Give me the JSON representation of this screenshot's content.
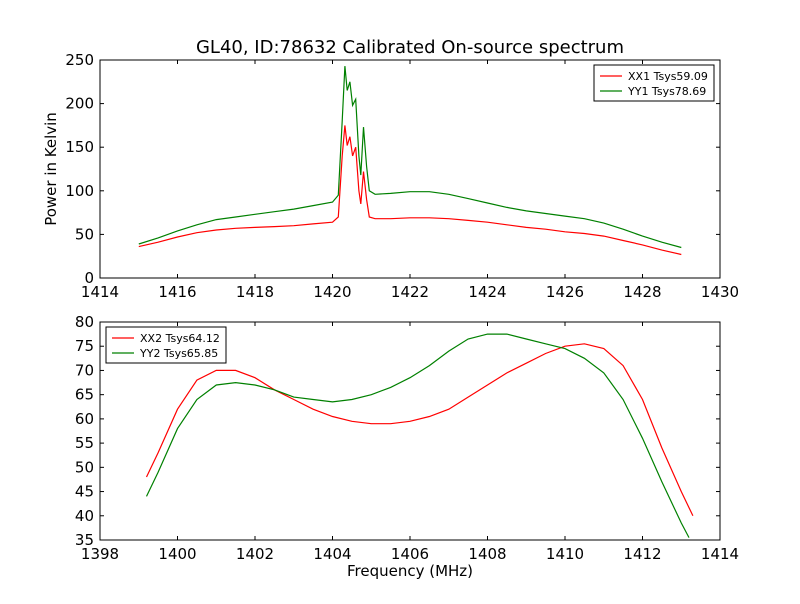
{
  "title": "GL40, ID:78632 Calibrated On-source spectrum",
  "chart_data": [
    {
      "type": "line",
      "ylabel": "Power in Kelvin",
      "xlabel": "",
      "xlim": [
        1414,
        1430
      ],
      "ylim": [
        0,
        250
      ],
      "xticks": [
        "1414",
        "1416",
        "1418",
        "1420",
        "1422",
        "1424",
        "1426",
        "1428",
        "1430"
      ],
      "yticks": [
        "0",
        "50",
        "100",
        "150",
        "200",
        "250"
      ],
      "grid": false,
      "legend_position": "top-right",
      "series": [
        {
          "name": "XX1 Tsys59.09",
          "color": "#ff0000",
          "points": [
            [
              1415.0,
              36
            ],
            [
              1415.5,
              41
            ],
            [
              1416.0,
              47
            ],
            [
              1416.5,
              52
            ],
            [
              1417.0,
              55
            ],
            [
              1417.5,
              57
            ],
            [
              1418.0,
              58
            ],
            [
              1418.5,
              59
            ],
            [
              1419.0,
              60
            ],
            [
              1419.5,
              62
            ],
            [
              1420.0,
              64
            ],
            [
              1420.15,
              70
            ],
            [
              1420.25,
              140
            ],
            [
              1420.32,
              175
            ],
            [
              1420.38,
              152
            ],
            [
              1420.45,
              162
            ],
            [
              1420.52,
              140
            ],
            [
              1420.6,
              150
            ],
            [
              1420.68,
              100
            ],
            [
              1420.73,
              85
            ],
            [
              1420.8,
              122
            ],
            [
              1420.88,
              90
            ],
            [
              1420.95,
              70
            ],
            [
              1421.1,
              68
            ],
            [
              1421.5,
              68
            ],
            [
              1422.0,
              69
            ],
            [
              1422.5,
              69
            ],
            [
              1423.0,
              68
            ],
            [
              1423.5,
              66
            ],
            [
              1424.0,
              64
            ],
            [
              1424.5,
              61
            ],
            [
              1425.0,
              58
            ],
            [
              1425.5,
              56
            ],
            [
              1426.0,
              53
            ],
            [
              1426.5,
              51
            ],
            [
              1427.0,
              48
            ],
            [
              1427.5,
              43
            ],
            [
              1428.0,
              38
            ],
            [
              1428.5,
              32
            ],
            [
              1429.0,
              27
            ]
          ]
        },
        {
          "name": "YY1 Tsys78.69",
          "color": "#008000",
          "points": [
            [
              1415.0,
              39
            ],
            [
              1415.5,
              46
            ],
            [
              1416.0,
              54
            ],
            [
              1416.5,
              61
            ],
            [
              1417.0,
              67
            ],
            [
              1417.5,
              70
            ],
            [
              1418.0,
              73
            ],
            [
              1418.5,
              76
            ],
            [
              1419.0,
              79
            ],
            [
              1419.5,
              83
            ],
            [
              1420.0,
              87
            ],
            [
              1420.15,
              95
            ],
            [
              1420.25,
              180
            ],
            [
              1420.32,
              243
            ],
            [
              1420.38,
              215
            ],
            [
              1420.45,
              225
            ],
            [
              1420.52,
              198
            ],
            [
              1420.6,
              205
            ],
            [
              1420.68,
              140
            ],
            [
              1420.73,
              118
            ],
            [
              1420.8,
              173
            ],
            [
              1420.88,
              128
            ],
            [
              1420.95,
              100
            ],
            [
              1421.1,
              96
            ],
            [
              1421.5,
              97
            ],
            [
              1422.0,
              99
            ],
            [
              1422.5,
              99
            ],
            [
              1423.0,
              96
            ],
            [
              1423.5,
              91
            ],
            [
              1424.0,
              86
            ],
            [
              1424.5,
              81
            ],
            [
              1425.0,
              77
            ],
            [
              1425.5,
              74
            ],
            [
              1426.0,
              71
            ],
            [
              1426.5,
              68
            ],
            [
              1427.0,
              63
            ],
            [
              1427.5,
              56
            ],
            [
              1428.0,
              48
            ],
            [
              1428.5,
              41
            ],
            [
              1429.0,
              35
            ]
          ]
        }
      ]
    },
    {
      "type": "line",
      "xlabel": "Frequency (MHz)",
      "ylabel": "",
      "xlim": [
        1398,
        1414
      ],
      "ylim": [
        35,
        80
      ],
      "xticks": [
        "1398",
        "1400",
        "1402",
        "1404",
        "1406",
        "1408",
        "1410",
        "1412",
        "1414"
      ],
      "yticks": [
        "35",
        "40",
        "45",
        "50",
        "55",
        "60",
        "65",
        "70",
        "75",
        "80"
      ],
      "grid": false,
      "legend_position": "top-left",
      "series": [
        {
          "name": "XX2 Tsys64.12",
          "color": "#ff0000",
          "points": [
            [
              1399.2,
              48
            ],
            [
              1399.5,
              53
            ],
            [
              1400.0,
              62
            ],
            [
              1400.5,
              68
            ],
            [
              1401.0,
              70
            ],
            [
              1401.5,
              70
            ],
            [
              1402.0,
              68.5
            ],
            [
              1402.5,
              66
            ],
            [
              1403.0,
              64
            ],
            [
              1403.5,
              62
            ],
            [
              1404.0,
              60.5
            ],
            [
              1404.5,
              59.5
            ],
            [
              1405.0,
              59
            ],
            [
              1405.5,
              59
            ],
            [
              1406.0,
              59.5
            ],
            [
              1406.5,
              60.5
            ],
            [
              1407.0,
              62
            ],
            [
              1407.5,
              64.5
            ],
            [
              1408.0,
              67
            ],
            [
              1408.5,
              69.5
            ],
            [
              1409.0,
              71.5
            ],
            [
              1409.5,
              73.5
            ],
            [
              1410.0,
              75
            ],
            [
              1410.5,
              75.5
            ],
            [
              1411.0,
              74.5
            ],
            [
              1411.5,
              71
            ],
            [
              1412.0,
              64
            ],
            [
              1412.5,
              54
            ],
            [
              1413.0,
              45
            ],
            [
              1413.3,
              40
            ]
          ]
        },
        {
          "name": "YY2 Tsys65.85",
          "color": "#008000",
          "points": [
            [
              1399.2,
              44
            ],
            [
              1399.5,
              49
            ],
            [
              1400.0,
              58
            ],
            [
              1400.5,
              64
            ],
            [
              1401.0,
              67
            ],
            [
              1401.5,
              67.5
            ],
            [
              1402.0,
              67
            ],
            [
              1402.5,
              66
            ],
            [
              1403.0,
              64.5
            ],
            [
              1403.5,
              64
            ],
            [
              1404.0,
              63.5
            ],
            [
              1404.5,
              64
            ],
            [
              1405.0,
              65
            ],
            [
              1405.5,
              66.5
            ],
            [
              1406.0,
              68.5
            ],
            [
              1406.5,
              71
            ],
            [
              1407.0,
              74
            ],
            [
              1407.5,
              76.5
            ],
            [
              1408.0,
              77.5
            ],
            [
              1408.5,
              77.5
            ],
            [
              1409.0,
              76.5
            ],
            [
              1409.5,
              75.5
            ],
            [
              1410.0,
              74.5
            ],
            [
              1410.5,
              72.5
            ],
            [
              1411.0,
              69.5
            ],
            [
              1411.5,
              64
            ],
            [
              1412.0,
              56
            ],
            [
              1412.5,
              47
            ],
            [
              1413.0,
              38.5
            ],
            [
              1413.2,
              35.5
            ]
          ]
        }
      ]
    }
  ]
}
